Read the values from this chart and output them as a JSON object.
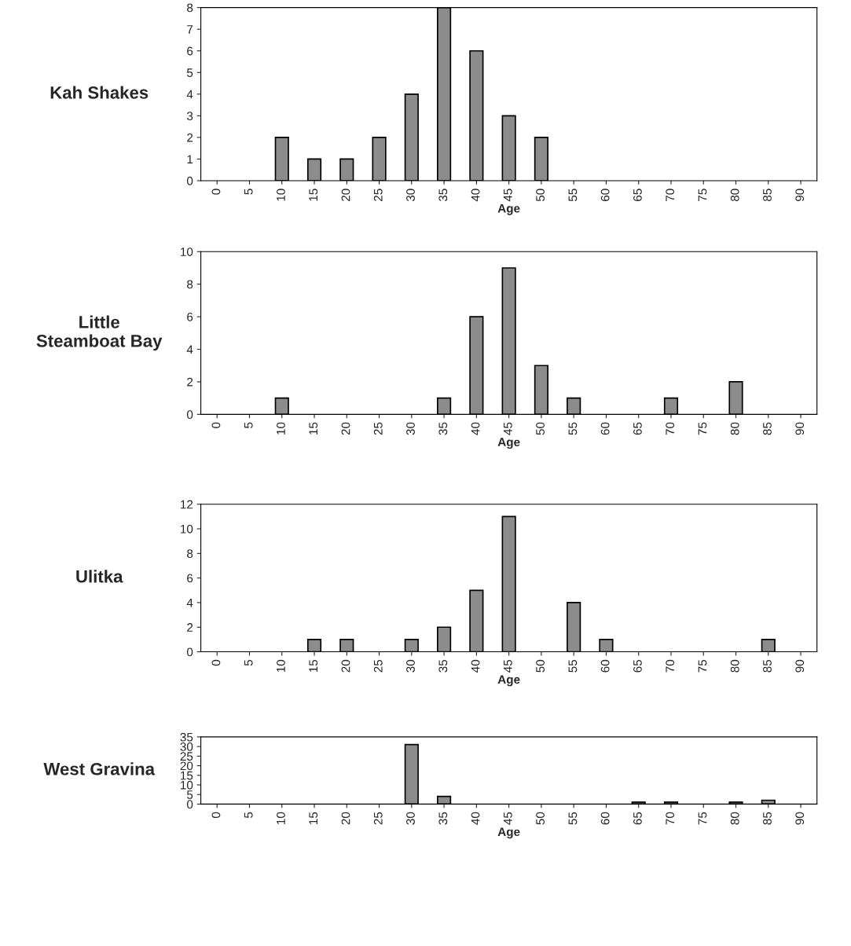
{
  "chart_data": [
    {
      "type": "bar",
      "ylabel": "Kah Shakes",
      "xlabel": "Age",
      "categories": [
        "0",
        "5",
        "10",
        "15",
        "20",
        "25",
        "30",
        "35",
        "40",
        "45",
        "50",
        "55",
        "60",
        "65",
        "70",
        "75",
        "80",
        "85",
        "90"
      ],
      "values": [
        0,
        0,
        2,
        1,
        1,
        2,
        4,
        8,
        6,
        3,
        2,
        0,
        0,
        0,
        0,
        0,
        0,
        0,
        0
      ],
      "color": "#8c8c8c",
      "ylim": [
        0,
        8
      ],
      "yticks": [
        0,
        1,
        2,
        3,
        4,
        5,
        6,
        7,
        8
      ],
      "grid": false
    },
    {
      "type": "bar",
      "ylabel": "Little\nSteamboat Bay",
      "xlabel": "Age",
      "categories": [
        "0",
        "5",
        "10",
        "15",
        "20",
        "25",
        "30",
        "35",
        "40",
        "45",
        "50",
        "55",
        "60",
        "65",
        "70",
        "75",
        "80",
        "85",
        "90"
      ],
      "values": [
        0,
        0,
        1,
        0,
        0,
        0,
        0,
        1,
        6,
        9,
        3,
        1,
        0,
        0,
        1,
        0,
        2,
        0,
        0
      ],
      "color": "#8c8c8c",
      "ylim": [
        0,
        10
      ],
      "yticks": [
        0,
        2,
        4,
        6,
        8,
        10
      ],
      "grid": false
    },
    {
      "type": "bar",
      "ylabel": "Ulitka",
      "xlabel": "Age",
      "categories": [
        "0",
        "5",
        "10",
        "15",
        "20",
        "25",
        "30",
        "35",
        "40",
        "45",
        "50",
        "55",
        "60",
        "65",
        "70",
        "75",
        "80",
        "85",
        "90"
      ],
      "values": [
        0,
        0,
        0,
        1,
        1,
        0,
        1,
        2,
        5,
        11,
        0,
        4,
        1,
        0,
        0,
        0,
        0,
        1,
        0
      ],
      "color": "#8c8c8c",
      "ylim": [
        0,
        12
      ],
      "yticks": [
        0,
        2,
        4,
        6,
        8,
        10,
        12
      ],
      "grid": false
    },
    {
      "type": "bar",
      "ylabel": "West Gravina",
      "xlabel": "Age",
      "categories": [
        "0",
        "5",
        "10",
        "15",
        "20",
        "25",
        "30",
        "35",
        "40",
        "45",
        "50",
        "55",
        "60",
        "65",
        "70",
        "75",
        "80",
        "85",
        "90"
      ],
      "values": [
        0,
        0,
        0,
        0,
        0,
        0,
        31,
        4,
        0,
        0,
        0,
        0,
        0,
        1,
        1,
        0,
        1,
        2,
        0
      ],
      "color": "#8c8c8c",
      "ylim": [
        0,
        35
      ],
      "yticks": [
        0,
        5,
        10,
        15,
        20,
        25,
        30,
        35
      ],
      "grid": false
    }
  ]
}
